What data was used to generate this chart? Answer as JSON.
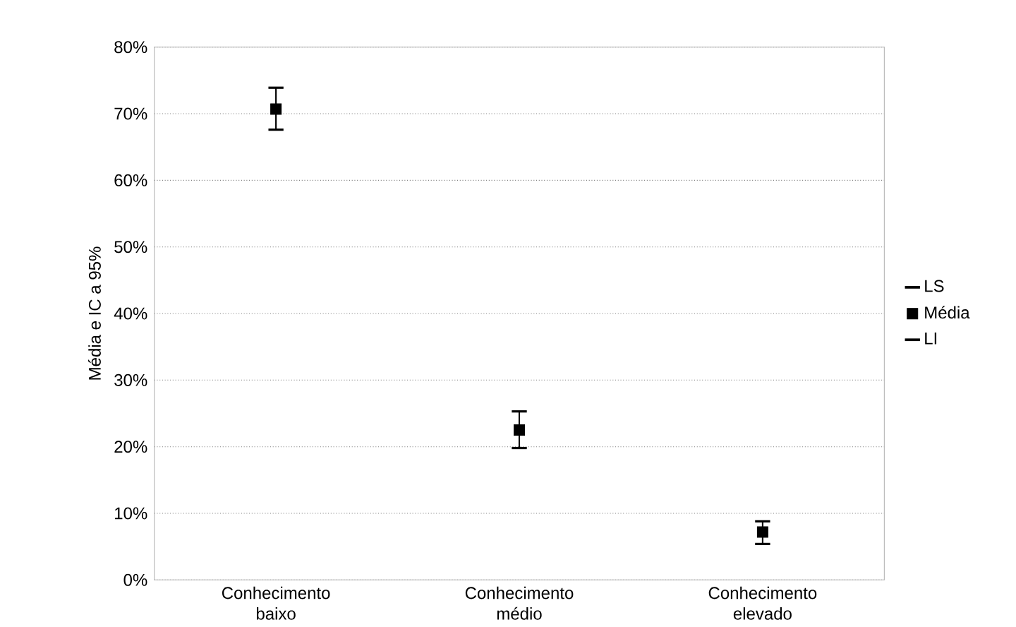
{
  "chart_data": {
    "type": "scatter",
    "ylabel": "Média e IC a 95%",
    "categories": [
      "Conhecimento baixo",
      "Conhecimento médio",
      "Conhecimento elevado"
    ],
    "series": [
      {
        "name": "Média",
        "color": "#000000",
        "marker": "square",
        "values": [
          70.7,
          22.5,
          7.2
        ],
        "errors": [
          [
            67.6,
            73.9
          ],
          [
            19.8,
            25.3
          ],
          [
            5.4,
            8.8
          ]
        ]
      }
    ],
    "annotations": [
      "LS",
      "LI"
    ],
    "ylim": [
      0,
      80
    ],
    "yticks": [
      {
        "value": 0,
        "label": "0%"
      },
      {
        "value": 10,
        "label": "10%"
      },
      {
        "value": 20,
        "label": "20%"
      },
      {
        "value": 30,
        "label": "30%"
      },
      {
        "value": 40,
        "label": "40%"
      },
      {
        "value": 50,
        "label": "50%"
      },
      {
        "value": 60,
        "label": "60%"
      },
      {
        "value": 70,
        "label": "70%"
      },
      {
        "value": 80,
        "label": "80%"
      }
    ],
    "grid": "y",
    "legend": "right"
  }
}
